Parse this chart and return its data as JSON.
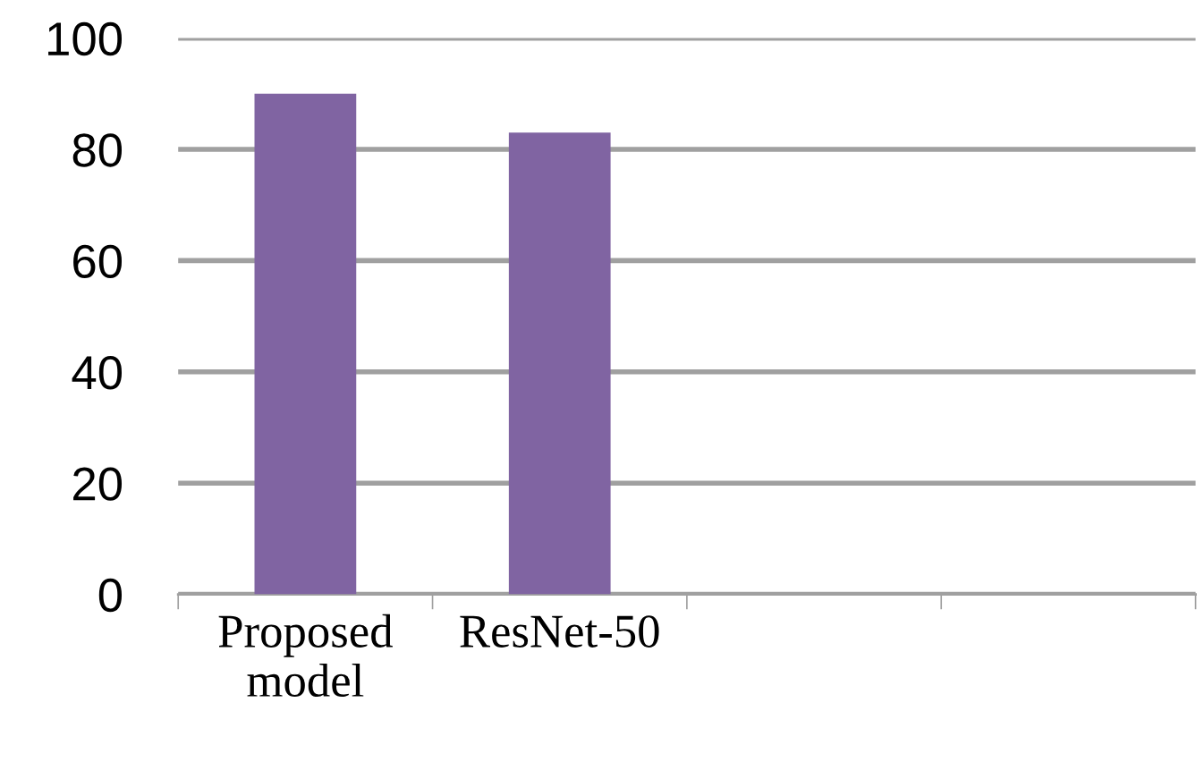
{
  "chart_data": {
    "type": "bar",
    "categories": [
      "Proposed\nmodel",
      "ResNet-50",
      null,
      null
    ],
    "values": [
      90,
      83,
      null,
      null
    ],
    "color": "#8064a2",
    "ylim": [
      0,
      100
    ],
    "yticks": [
      0,
      20,
      40,
      60,
      80,
      100
    ],
    "grid": "y",
    "legend": false
  }
}
